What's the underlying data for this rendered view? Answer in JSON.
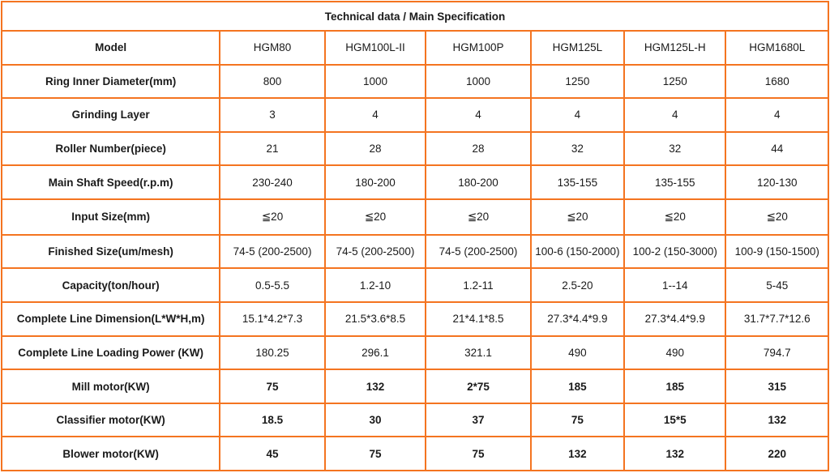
{
  "title": "Technical data / Main Specification",
  "colors": {
    "header_bg": "#FF0000",
    "header_text": "#FFFFFF",
    "border": "#F47420",
    "cell_bg": "#FFFFFF",
    "text": "#1A1A1A"
  },
  "table": {
    "rows": [
      {
        "label": "Model",
        "values": [
          "HGM80",
          "HGM100L-II",
          "HGM100P",
          "HGM125L",
          "HGM125L-H",
          "HGM1680L"
        ],
        "bold_values": false
      },
      {
        "label": "Ring Inner Diameter(mm)",
        "values": [
          "800",
          "1000",
          "1000",
          "1250",
          "1250",
          "1680"
        ],
        "bold_values": false
      },
      {
        "label": "Grinding Layer",
        "values": [
          "3",
          "4",
          "4",
          "4",
          "4",
          "4"
        ],
        "bold_values": false
      },
      {
        "label": "Roller Number(piece)",
        "values": [
          "21",
          "28",
          "28",
          "32",
          "32",
          "44"
        ],
        "bold_values": false
      },
      {
        "label": "Main Shaft Speed(r.p.m)",
        "values": [
          "230-240",
          "180-200",
          "180-200",
          "135-155",
          "135-155",
          "120-130"
        ],
        "bold_values": false
      },
      {
        "label": "Input Size(mm)",
        "values": [
          "≦20",
          "≦20",
          "≦20",
          "≦20",
          "≦20",
          "≦20"
        ],
        "bold_values": false
      },
      {
        "label": "Finished Size(um/mesh)",
        "values": [
          "74-5 (200-2500)",
          "74-5 (200-2500)",
          "74-5 (200-2500)",
          "100-6 (150-2000)",
          "100-2 (150-3000)",
          "100-9 (150-1500)"
        ],
        "bold_values": false
      },
      {
        "label": "Capacity(ton/hour)",
        "values": [
          "0.5-5.5",
          "1.2-10",
          "1.2-11",
          "2.5-20",
          "1--14",
          "5-45"
        ],
        "bold_values": false
      },
      {
        "label": "Complete Line Dimension(L*W*H,m)",
        "values": [
          "15.1*4.2*7.3",
          "21.5*3.6*8.5",
          "21*4.1*8.5",
          "27.3*4.4*9.9",
          "27.3*4.4*9.9",
          "31.7*7.7*12.6"
        ],
        "bold_values": false
      },
      {
        "label": "Complete Line Loading Power (KW)",
        "values": [
          "180.25",
          "296.1",
          "321.1",
          "490",
          "490",
          "794.7"
        ],
        "bold_values": false
      },
      {
        "label": "Mill motor(KW)",
        "values": [
          "75",
          "132",
          "2*75",
          "185",
          "185",
          "315"
        ],
        "bold_values": true
      },
      {
        "label": "Classifier motor(KW)",
        "values": [
          "18.5",
          "30",
          "37",
          "75",
          "15*5",
          "132"
        ],
        "bold_values": true
      },
      {
        "label": "Blower motor(KW)",
        "values": [
          "45",
          "75",
          "75",
          "132",
          "132",
          "220"
        ],
        "bold_values": true
      }
    ],
    "column_widths_percent": [
      26.4,
      12.7,
      12.2,
      12.7,
      11.3,
      12.3,
      12.4
    ]
  }
}
